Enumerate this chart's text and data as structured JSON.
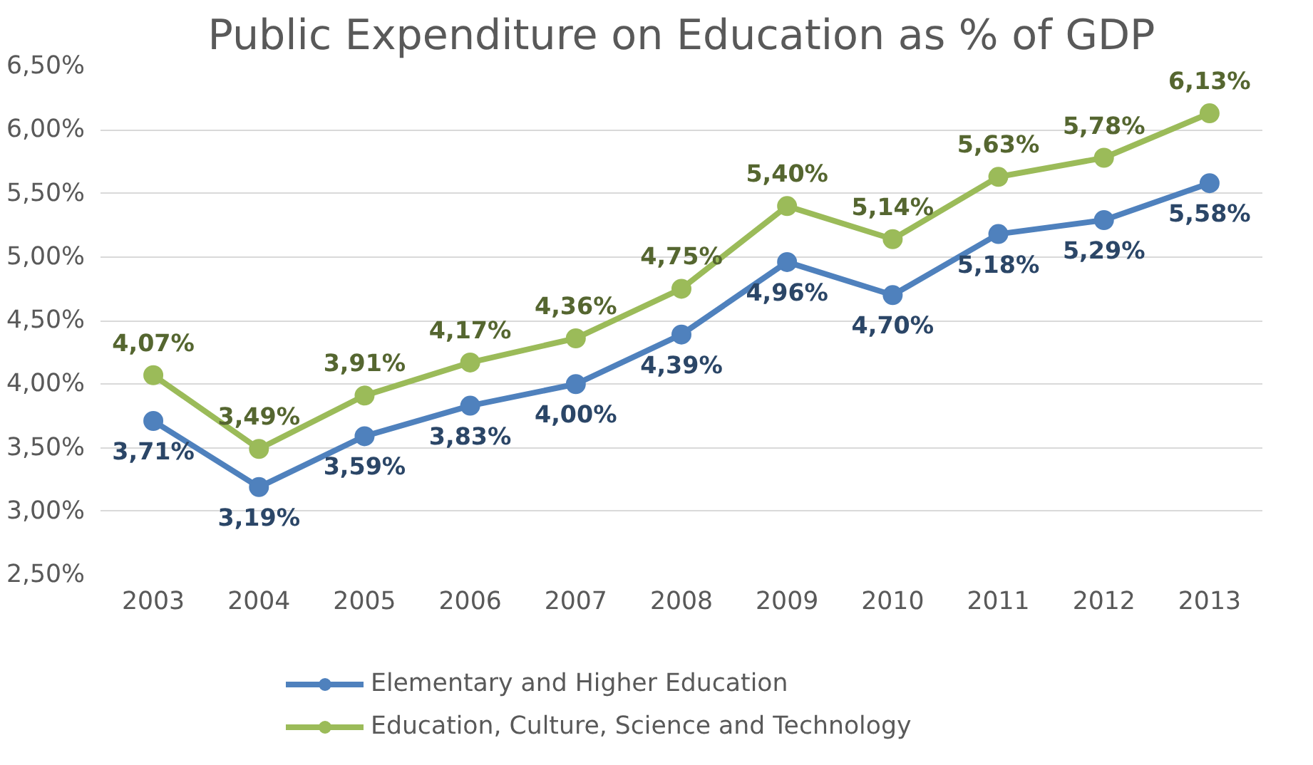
{
  "chart_data": {
    "type": "line",
    "title": "Public Expenditure on Education as % of GDP",
    "categories": [
      "2003",
      "2004",
      "2005",
      "2006",
      "2007",
      "2008",
      "2009",
      "2010",
      "2011",
      "2012",
      "2013"
    ],
    "series": [
      {
        "name": "Elementary and Higher Education",
        "color": "#4f81bd",
        "values": [
          3.71,
          3.19,
          3.59,
          3.83,
          4.0,
          4.39,
          4.96,
          4.7,
          5.18,
          5.29,
          5.58
        ],
        "value_labels": [
          "3,71%",
          "3,19%",
          "3,59%",
          "3,83%",
          "4,00%",
          "4,39%",
          "4,96%",
          "4,70%",
          "5,18%",
          "5,29%",
          "5,58%"
        ]
      },
      {
        "name": "Education, Culture, Science and Technology",
        "color": "#9bbb59",
        "values": [
          4.07,
          3.49,
          3.91,
          4.17,
          4.36,
          4.75,
          5.4,
          5.14,
          5.63,
          5.78,
          6.13
        ],
        "value_labels": [
          "4,07%",
          "3,49%",
          "3,91%",
          "4,17%",
          "4,36%",
          "4,75%",
          "5,40%",
          "5,14%",
          "5,63%",
          "5,78%",
          "6,13%"
        ]
      }
    ],
    "ylim": [
      2.5,
      6.5
    ],
    "yticks": [
      {
        "value": 2.5,
        "label": "2,50%"
      },
      {
        "value": 3.0,
        "label": "3,00%"
      },
      {
        "value": 3.5,
        "label": "3,50%"
      },
      {
        "value": 4.0,
        "label": "4,00%"
      },
      {
        "value": 4.5,
        "label": "4,50%"
      },
      {
        "value": 5.0,
        "label": "5,00%"
      },
      {
        "value": 5.5,
        "label": "5,50%"
      },
      {
        "value": 6.0,
        "label": "6,00%"
      },
      {
        "value": 6.5,
        "label": "6,50%"
      }
    ],
    "grid": "y",
    "legend": "bottom",
    "marker": "circle",
    "line_style": "solid"
  }
}
